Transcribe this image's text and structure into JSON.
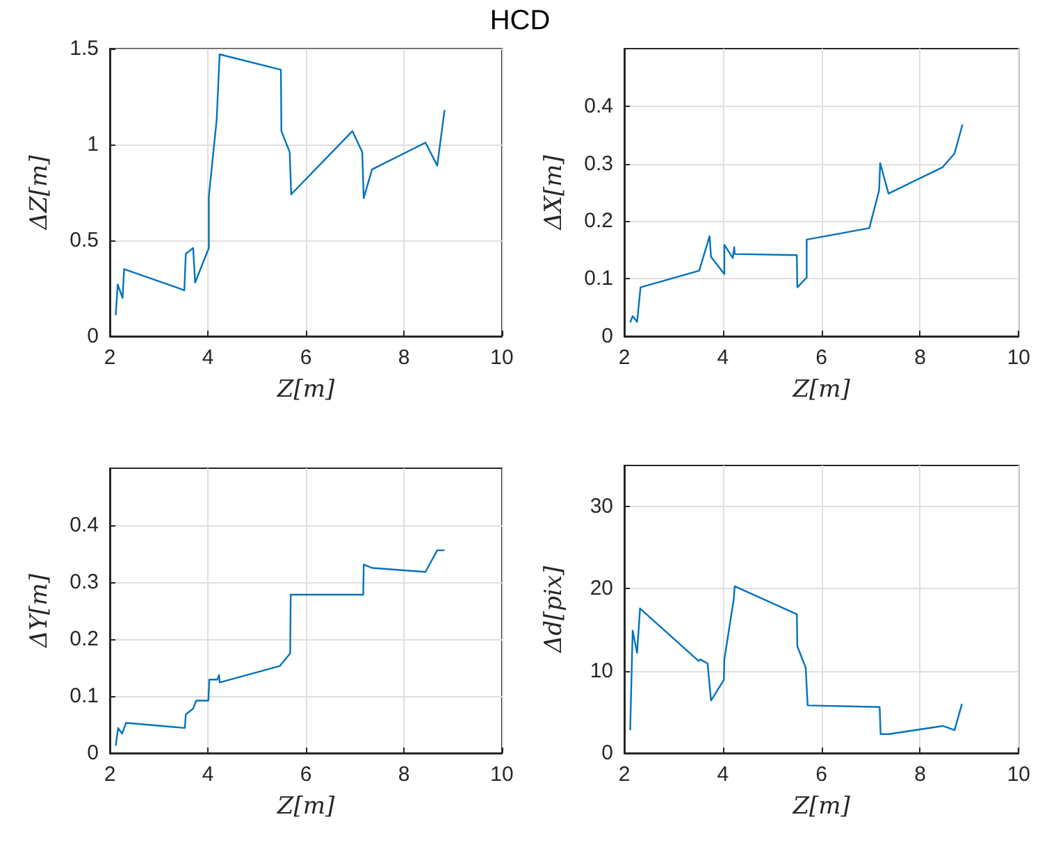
{
  "chart_data": [
    {
      "type": "line",
      "title": "HCD",
      "xlabel": "Z[m]",
      "ylabel": "ΔZ[m]",
      "xlim": [
        2,
        10
      ],
      "xticks": [
        2,
        4,
        6,
        8,
        10
      ],
      "ylim": [
        0,
        1.5
      ],
      "yticks": [
        0,
        0.5,
        1,
        1.5
      ],
      "grid": true,
      "marker": "none",
      "series": [
        {
          "color": "#0072bd",
          "x": [
            2.12,
            2.16,
            2.26,
            2.29,
            3.52,
            3.55,
            3.7,
            3.74,
            4.02,
            4.02,
            4.18,
            4.24,
            5.49,
            5.5,
            5.67,
            5.7,
            6.95,
            7.15,
            7.18,
            7.35,
            8.44,
            8.68,
            8.83
          ],
          "values": [
            0.11,
            0.27,
            0.2,
            0.35,
            0.24,
            0.43,
            0.46,
            0.28,
            0.46,
            0.73,
            1.13,
            1.47,
            1.39,
            1.07,
            0.96,
            0.74,
            1.07,
            0.96,
            0.72,
            0.87,
            1.01,
            0.89,
            1.18
          ]
        }
      ]
    },
    {
      "type": "line",
      "xlabel": "Z[m]",
      "ylabel": "ΔX[m]",
      "xlim": [
        2,
        10
      ],
      "xticks": [
        2,
        4,
        6,
        8,
        10
      ],
      "ylim": [
        0,
        0.5
      ],
      "yticks": [
        0,
        0.1,
        0.2,
        0.3,
        0.4
      ],
      "grid": true,
      "marker": "none",
      "series": [
        {
          "color": "#0072bd",
          "x": [
            2.12,
            2.17,
            2.26,
            2.33,
            3.52,
            3.73,
            3.76,
            4.03,
            4.03,
            4.2,
            4.23,
            4.24,
            5.5,
            5.51,
            5.7,
            5.7,
            6.97,
            7.17,
            7.19,
            7.36,
            8.46,
            8.7,
            8.86
          ],
          "values": [
            0.024,
            0.035,
            0.025,
            0.085,
            0.114,
            0.174,
            0.138,
            0.108,
            0.159,
            0.136,
            0.155,
            0.143,
            0.141,
            0.085,
            0.102,
            0.168,
            0.188,
            0.254,
            0.301,
            0.248,
            0.294,
            0.318,
            0.368
          ]
        }
      ]
    },
    {
      "type": "line",
      "xlabel": "Z[m]",
      "ylabel": "ΔY[m]",
      "xlim": [
        2,
        10
      ],
      "xticks": [
        2,
        4,
        6,
        8,
        10
      ],
      "ylim": [
        0,
        0.5
      ],
      "yticks": [
        0,
        0.1,
        0.2,
        0.3,
        0.4
      ],
      "grid": true,
      "marker": "none",
      "series": [
        {
          "color": "#0072bd",
          "x": [
            2.12,
            2.17,
            2.25,
            2.33,
            3.53,
            3.55,
            3.7,
            3.76,
            4.01,
            4.03,
            4.19,
            4.23,
            4.24,
            5.47,
            5.68,
            5.69,
            7.17,
            7.18,
            7.35,
            8.44,
            8.68,
            8.83
          ],
          "values": [
            0.013,
            0.044,
            0.034,
            0.053,
            0.044,
            0.068,
            0.078,
            0.092,
            0.092,
            0.129,
            0.129,
            0.137,
            0.124,
            0.153,
            0.175,
            0.278,
            0.278,
            0.331,
            0.325,
            0.318,
            0.356,
            0.356
          ]
        }
      ]
    },
    {
      "type": "line",
      "xlabel": "Z[m]",
      "ylabel": "Δd[pix]",
      "xlim": [
        2,
        10
      ],
      "xticks": [
        2,
        4,
        6,
        8,
        10
      ],
      "ylim": [
        0,
        35
      ],
      "yticks": [
        0,
        10,
        20,
        30
      ],
      "grid": true,
      "marker": "none",
      "series": [
        {
          "color": "#0072bd",
          "x": [
            2.12,
            2.17,
            2.26,
            2.32,
            3.51,
            3.54,
            3.69,
            3.76,
            4.02,
            4.03,
            4.22,
            4.24,
            5.5,
            5.51,
            5.68,
            5.72,
            7.18,
            7.2,
            7.36,
            8.46,
            8.7,
            8.85
          ],
          "values": [
            2.8,
            14.9,
            12.2,
            17.6,
            11.2,
            11.4,
            10.9,
            6.4,
            8.9,
            11.4,
            18.7,
            20.3,
            16.9,
            13.0,
            10.4,
            5.8,
            5.6,
            2.3,
            2.3,
            3.3,
            2.8,
            6.0
          ]
        }
      ]
    }
  ]
}
